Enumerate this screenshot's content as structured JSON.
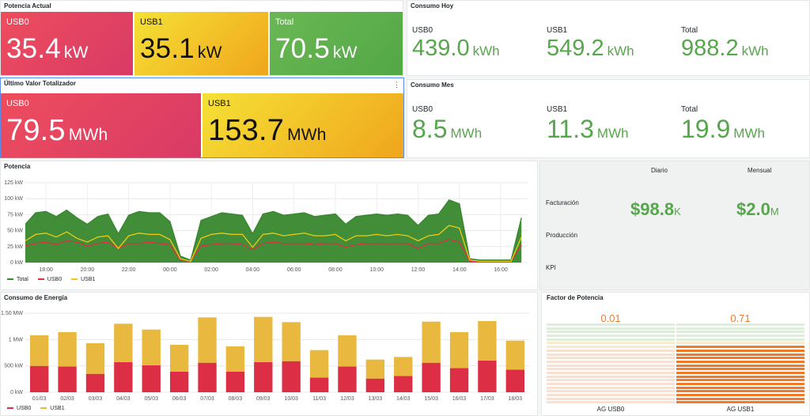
{
  "potencia_actual": {
    "title": "Potencia Actual",
    "items": [
      {
        "label": "USB0",
        "value": "35.4",
        "unit": "kW"
      },
      {
        "label": "USB1",
        "value": "35.1",
        "unit": "kW"
      },
      {
        "label": "Total",
        "value": "70.5",
        "unit": "kW"
      }
    ]
  },
  "consumo_hoy": {
    "title": "Consumo Hoy",
    "items": [
      {
        "label": "USB0",
        "value": "439.0",
        "unit": "kWh"
      },
      {
        "label": "USB1",
        "value": "549.2",
        "unit": "kWh"
      },
      {
        "label": "Total",
        "value": "988.2",
        "unit": "kWh"
      }
    ]
  },
  "ultimo_valor": {
    "title": "Último Valor Totalizador",
    "items": [
      {
        "label": "USB0",
        "value": "79.5",
        "unit": "MWh"
      },
      {
        "label": "USB1",
        "value": "153.7",
        "unit": "MWh"
      }
    ]
  },
  "consumo_mes": {
    "title": "Consumo Mes",
    "items": [
      {
        "label": "USB0",
        "value": "8.5",
        "unit": "MWh"
      },
      {
        "label": "USB1",
        "value": "11.3",
        "unit": "MWh"
      },
      {
        "label": "Total",
        "value": "19.9",
        "unit": "MWh"
      }
    ]
  },
  "facturacion": {
    "col_diario": "Diario",
    "col_mensual": "Mensual",
    "row_facturacion": "Facturación",
    "row_produccion": "Producción",
    "row_kpi": "KPI",
    "diario_value": "$98.8",
    "diario_unit": "K",
    "mensual_value": "$2.0",
    "mensual_unit": "M"
  },
  "factor_potencia": {
    "title": "Factor de Potencia",
    "gauges": [
      {
        "label": "AG USB0",
        "value": "0.01",
        "level": 0.01
      },
      {
        "label": "AG USB1",
        "value": "0.71",
        "level": 0.71
      }
    ]
  },
  "colors": {
    "total": "#37872d",
    "usb0": "#e02f44",
    "usb1": "#f2cc0c",
    "bar_usb1": "#e8b83f",
    "bar_usb0": "#dc2e45",
    "stat_green": "#56a64b",
    "gauge_orange": "#f07a2a"
  },
  "chart_data": [
    {
      "type": "area",
      "title": "Potencia",
      "y_ticks": [
        "0 kW",
        "25 kW",
        "50 kW",
        "75 kW",
        "100 kW",
        "125 kW"
      ],
      "ylim": [
        0,
        125
      ],
      "x_ticks": [
        "18:00",
        "20:00",
        "22:00",
        "00:00",
        "02:00",
        "04:00",
        "06:00",
        "08:00",
        "10:00",
        "12:00",
        "14:00",
        "16:00"
      ],
      "x_hours": [
        17.0,
        17.5,
        18.0,
        18.5,
        19.0,
        19.5,
        20.0,
        20.5,
        21.0,
        21.5,
        22.0,
        22.5,
        23.0,
        23.5,
        24.0,
        24.5,
        25.0,
        25.5,
        26.0,
        26.5,
        27.0,
        27.5,
        28.0,
        28.5,
        29.0,
        29.5,
        30.0,
        30.5,
        31.0,
        31.5,
        32.0,
        32.5,
        33.0,
        33.5,
        34.0,
        34.5,
        35.0,
        35.5,
        36.0,
        36.5,
        37.0,
        37.5,
        38.0,
        38.5,
        39.0,
        39.5,
        40.0,
        40.5,
        41.0
      ],
      "series": [
        {
          "name": "Total",
          "values": [
            60,
            78,
            80,
            72,
            82,
            70,
            60,
            72,
            76,
            45,
            74,
            80,
            78,
            78,
            64,
            10,
            4,
            66,
            72,
            78,
            76,
            74,
            45,
            76,
            80,
            74,
            76,
            78,
            72,
            74,
            76,
            60,
            72,
            74,
            76,
            74,
            76,
            74,
            58,
            74,
            76,
            98,
            92,
            6,
            4,
            4,
            4,
            4,
            70
          ]
        },
        {
          "name": "USB0",
          "values": [
            26,
            30,
            32,
            28,
            34,
            32,
            26,
            30,
            32,
            22,
            30,
            30,
            32,
            30,
            28,
            4,
            2,
            26,
            28,
            30,
            30,
            28,
            20,
            30,
            32,
            30,
            30,
            30,
            28,
            30,
            30,
            24,
            28,
            30,
            30,
            30,
            30,
            30,
            22,
            30,
            30,
            36,
            32,
            2,
            2,
            2,
            2,
            2,
            28
          ]
        },
        {
          "name": "USB1",
          "values": [
            34,
            44,
            46,
            40,
            48,
            38,
            32,
            40,
            42,
            22,
            42,
            46,
            44,
            44,
            36,
            6,
            2,
            38,
            44,
            46,
            44,
            44,
            24,
            44,
            46,
            42,
            44,
            46,
            42,
            42,
            44,
            34,
            42,
            42,
            44,
            42,
            44,
            42,
            34,
            42,
            44,
            58,
            54,
            4,
            2,
            2,
            2,
            2,
            40
          ]
        }
      ],
      "legend": [
        "Total",
        "USB0",
        "USB1"
      ]
    },
    {
      "type": "bar",
      "title": "Consumo de Energía",
      "categories": [
        "01/03",
        "02/03",
        "03/03",
        "04/03",
        "05/03",
        "06/03",
        "07/03",
        "08/03",
        "09/03",
        "10/03",
        "11/03",
        "12/03",
        "13/03",
        "14/03",
        "15/03",
        "16/03",
        "17/03",
        "18/03"
      ],
      "y_ticks": [
        "0 kW",
        "500 kW",
        "1 MW",
        "1.50 MW"
      ],
      "ylim": [
        0,
        1.5
      ],
      "series": [
        {
          "name": "USB0",
          "values": [
            0.5,
            0.49,
            0.35,
            0.57,
            0.51,
            0.39,
            0.56,
            0.39,
            0.57,
            0.59,
            0.28,
            0.49,
            0.26,
            0.31,
            0.56,
            0.46,
            0.6,
            0.43
          ]
        },
        {
          "name": "USB1",
          "values": [
            0.58,
            0.65,
            0.58,
            0.73,
            0.68,
            0.51,
            0.86,
            0.48,
            0.86,
            0.74,
            0.52,
            0.59,
            0.36,
            0.36,
            0.78,
            0.68,
            0.75,
            0.55
          ]
        }
      ],
      "legend": [
        "USB0",
        "USB1"
      ]
    }
  ]
}
